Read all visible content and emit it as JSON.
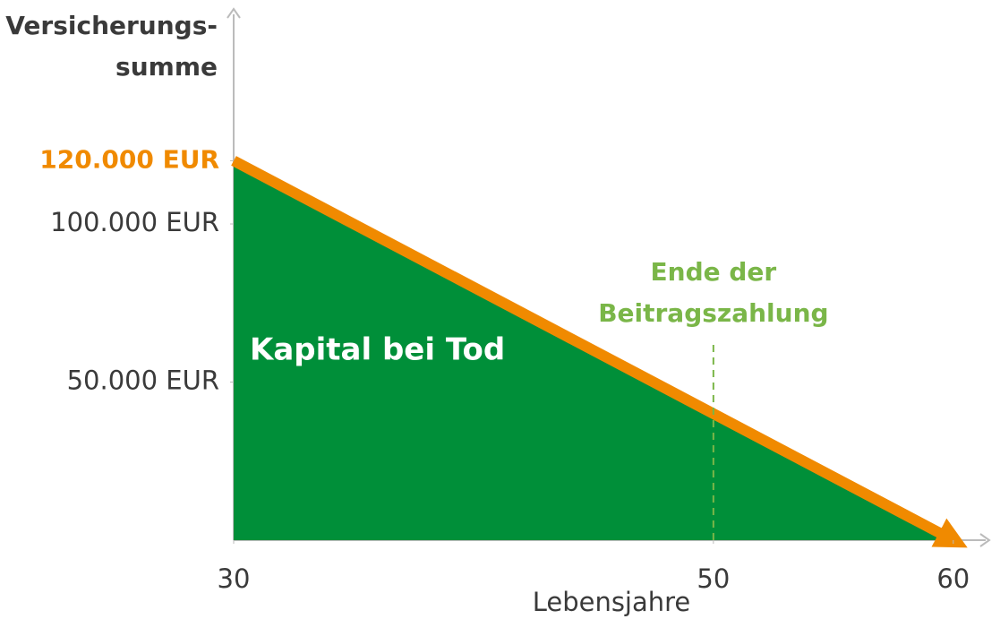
{
  "chart_data": {
    "type": "area",
    "y_label": [
      "Versicherungs-",
      "summe"
    ],
    "x_label": "Lebensjahre",
    "area_label": "Kapital bei Tod",
    "x": [
      30,
      60
    ],
    "series": [
      {
        "name": "Versicherungssumme",
        "values": [
          120000,
          0
        ],
        "color": "#f08a00",
        "fill": "#008f39"
      }
    ],
    "xlim": [
      30,
      61.5
    ],
    "xticks": [
      30,
      50,
      60
    ],
    "ylim": [
      0,
      168000
    ],
    "yticks": [
      {
        "value": 50000,
        "label": "50.000 EUR"
      },
      {
        "value": 100000,
        "label": "100.000 EUR"
      },
      {
        "value": 120000,
        "label": "120.000 EUR"
      }
    ],
    "annotations": [
      {
        "text": [
          "Ende der",
          "Beitragszahlung"
        ],
        "x": 50,
        "color": "#7ab648"
      }
    ]
  }
}
